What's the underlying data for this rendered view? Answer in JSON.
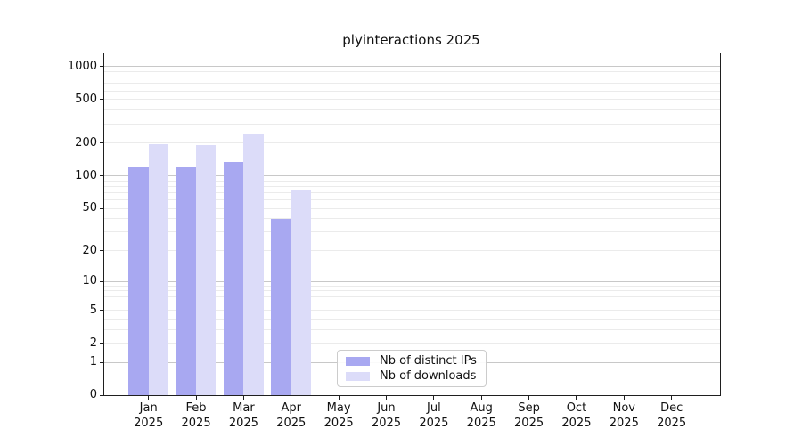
{
  "title": "plyinteractions 2025",
  "chart_data": {
    "type": "bar",
    "title": "plyinteractions 2025",
    "categories": [
      "Jan 2025",
      "Feb 2025",
      "Mar 2025",
      "Apr 2025",
      "May 2025",
      "Jun 2025",
      "Jul 2025",
      "Aug 2025",
      "Sep 2025",
      "Oct 2025",
      "Nov 2025",
      "Dec 2025"
    ],
    "series": [
      {
        "name": "Nb of distinct IPs",
        "color": "#a8a8f1",
        "values": [
          119,
          119,
          133,
          40,
          0,
          0,
          0,
          0,
          0,
          0,
          0,
          0
        ]
      },
      {
        "name": "Nb of downloads",
        "color": "#dcdcf9",
        "values": [
          196,
          192,
          245,
          73,
          0,
          0,
          0,
          0,
          0,
          0,
          0,
          0
        ]
      }
    ],
    "xlabel": "",
    "ylabel": "",
    "yscale": "log10(1+value)",
    "yticks": [
      0,
      1,
      2,
      5,
      10,
      20,
      50,
      100,
      200,
      500,
      1000
    ],
    "ylim": [
      0,
      1320
    ],
    "grid": true,
    "legend_position": "lower center",
    "colors": {
      "minor_grid": "#ebebeb",
      "major_grid": "#c8c8c8",
      "spine": "#1f1f1f",
      "background": "#ffffff"
    }
  }
}
